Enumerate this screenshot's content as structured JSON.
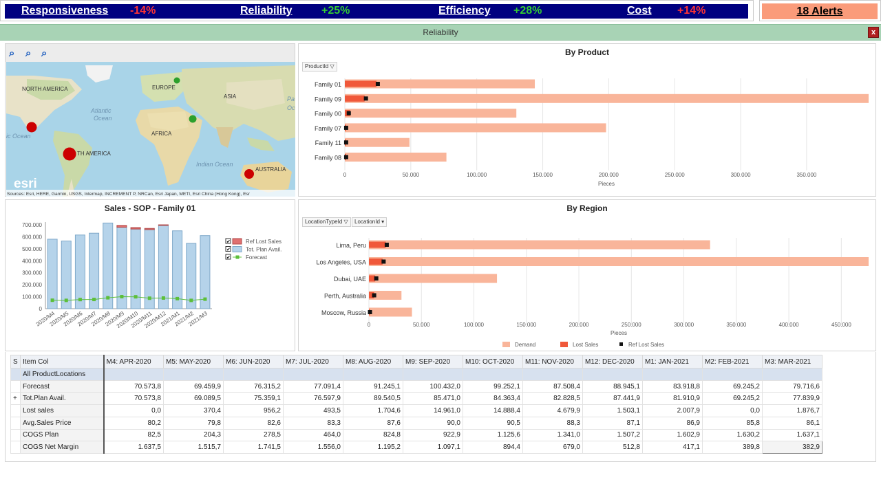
{
  "kpis": [
    {
      "label": "Responsiveness",
      "value": "-14%",
      "color": "#ff3333"
    },
    {
      "label": "Reliability",
      "value": "+25%",
      "color": "#33cc33"
    },
    {
      "label": "Efficiency",
      "value": "+28%",
      "color": "#33cc33"
    },
    {
      "label": "Cost",
      "value": "+14%",
      "color": "#ff3333"
    }
  ],
  "alerts": "18 Alerts",
  "panel": {
    "title": "Reliability",
    "close": "x"
  },
  "map": {
    "labels": [
      "NORTH AMERICA",
      "EUROPE",
      "ASIA",
      "Atlantic",
      "Ocean",
      "AFRICA",
      "ic Ocean",
      "TH AMERICA",
      "Indian Ocean",
      "AUSTRALIA",
      "Pa",
      "Oc"
    ],
    "logo": "esri",
    "attribution": "Sources: Esri, HERE, Garmin, USGS, Intermap, INCREMENT P, NRCan, Esri Japan, METI, Esri China (Hong Kong), Esr"
  },
  "by_product": {
    "title": "By Product",
    "filter": "ProductId",
    "xlabel": "Pieces",
    "chart_data": {
      "type": "bar",
      "orientation": "horizontal",
      "categories": [
        "Family 01",
        "Family 09",
        "Family 00",
        "Family 07",
        "Family 11",
        "Family 08"
      ],
      "series": [
        {
          "name": "Demand",
          "values": [
            144000,
            397000,
            130000,
            198000,
            49000,
            77000
          ]
        },
        {
          "name": "Lost Sales",
          "values": [
            24000,
            15000,
            4000,
            1000,
            1000,
            1000
          ]
        },
        {
          "name": "Ref Lost Sales",
          "values": [
            25000,
            16000,
            3000,
            1000,
            1000,
            1000
          ]
        }
      ],
      "xticks": [
        "0",
        "50.000",
        "100.000",
        "150.000",
        "200.000",
        "250.000",
        "300.000",
        "350.000"
      ],
      "xlim": [
        0,
        397000
      ]
    }
  },
  "by_region": {
    "title": "By Region",
    "filters": [
      "LocationTypeId",
      "LocationId"
    ],
    "xlabel": "Pieces",
    "legend": [
      "Demand",
      "Lost Sales",
      "Ref Lost Sales"
    ],
    "chart_data": {
      "type": "bar",
      "orientation": "horizontal",
      "categories": [
        "Lima, Peru",
        "Los Angeles, USA",
        "Dubai, UAE",
        "Perth, Australia",
        "Moscow, Russia"
      ],
      "series": [
        {
          "name": "Demand",
          "values": [
            325000,
            476000,
            122000,
            31000,
            41000
          ]
        },
        {
          "name": "Lost Sales",
          "values": [
            16000,
            13000,
            6000,
            5000,
            1000
          ]
        },
        {
          "name": "Ref Lost Sales",
          "values": [
            17000,
            14000,
            7000,
            5000,
            1000
          ]
        }
      ],
      "xticks": [
        "0",
        "50.000",
        "100.000",
        "150.000",
        "200.000",
        "250.000",
        "300.000",
        "350.000",
        "400.000",
        "450.000"
      ],
      "xlim": [
        0,
        476000
      ]
    }
  },
  "sales_sop": {
    "title": "Sales - SOP - Family 01",
    "legend": [
      "Ref Lost Sales",
      "Tot. Plan Avail.",
      "Forecast"
    ],
    "chart_data": {
      "type": "bar",
      "categories": [
        "2020/M4",
        "2020/M5",
        "2020/M6",
        "2020/M7",
        "2020/M8",
        "2020/M9",
        "2020/M10",
        "2020/M11",
        "2020/M12",
        "2021/M1",
        "2021/M2",
        "2021/M3"
      ],
      "series": [
        {
          "name": "Tot. Plan Avail.",
          "values": [
            580000,
            565000,
            615000,
            630000,
            715000,
            680000,
            665000,
            660000,
            695000,
            650000,
            545000,
            610000
          ]
        },
        {
          "name": "Ref Lost Sales",
          "values": [
            0,
            0,
            0,
            0,
            0,
            15000,
            12000,
            10000,
            5000,
            0,
            0,
            0
          ]
        },
        {
          "name": "Forecast",
          "values": [
            70573.8,
            69459.9,
            76315.2,
            77091.4,
            91245.1,
            100432.0,
            99252.1,
            87508.4,
            88945.1,
            83918.8,
            69245.2,
            79716.6
          ]
        }
      ],
      "yticks": [
        "0",
        "100.000",
        "200.000",
        "300.000",
        "400.000",
        "500.000",
        "600.000",
        "700.000"
      ],
      "ylim": [
        0,
        700000
      ]
    }
  },
  "grid": {
    "headers": [
      "S",
      "Item Col",
      "M4: APR-2020",
      "M5: MAY-2020",
      "M6: JUN-2020",
      "M7: JUL-2020",
      "M8: AUG-2020",
      "M9: SEP-2020",
      "M10: OCT-2020",
      "M11: NOV-2020",
      "M12: DEC-2020",
      "M1: JAN-2021",
      "M2: FEB-2021",
      "M3: MAR-2021"
    ],
    "group": "All ProductLocations",
    "rows": [
      {
        "s": "",
        "label": "Forecast",
        "values": [
          "70.573,8",
          "69.459,9",
          "76.315,2",
          "77.091,4",
          "91.245,1",
          "100.432,0",
          "99.252,1",
          "87.508,4",
          "88.945,1",
          "83.918,8",
          "69.245,2",
          "79.716,6"
        ]
      },
      {
        "s": "+",
        "label": "Tot.Plan Avail.",
        "values": [
          "70.573,8",
          "69.089,5",
          "75.359,1",
          "76.597,9",
          "89.540,5",
          "85.471,0",
          "84.363,4",
          "82.828,5",
          "87.441,9",
          "81.910,9",
          "69.245,2",
          "77.839,9"
        ]
      },
      {
        "s": "",
        "label": "Lost sales",
        "values": [
          "0,0",
          "370,4",
          "956,2",
          "493,5",
          "1.704,6",
          "14.961,0",
          "14.888,4",
          "4.679,9",
          "1.503,1",
          "2.007,9",
          "0,0",
          "1.876,7"
        ]
      },
      {
        "s": "",
        "label": "Avg.Sales Price",
        "values": [
          "80,2",
          "79,8",
          "82,6",
          "83,3",
          "87,6",
          "90,0",
          "90,5",
          "88,3",
          "87,1",
          "86,9",
          "85,8",
          "86,1"
        ]
      },
      {
        "s": "",
        "label": "COGS Plan",
        "values": [
          "82,5",
          "204,3",
          "278,5",
          "464,0",
          "824,8",
          "922,9",
          "1.125,6",
          "1.341,0",
          "1.507,2",
          "1.602,9",
          "1.630,2",
          "1.637,1"
        ]
      },
      {
        "s": "",
        "label": "COGS Net Margin",
        "values": [
          "1.637,5",
          "1.515,7",
          "1.741,5",
          "1.556,0",
          "1.195,2",
          "1.097,1",
          "894,4",
          "679,0",
          "512,8",
          "417,1",
          "389,8",
          "382,9"
        ]
      }
    ]
  }
}
